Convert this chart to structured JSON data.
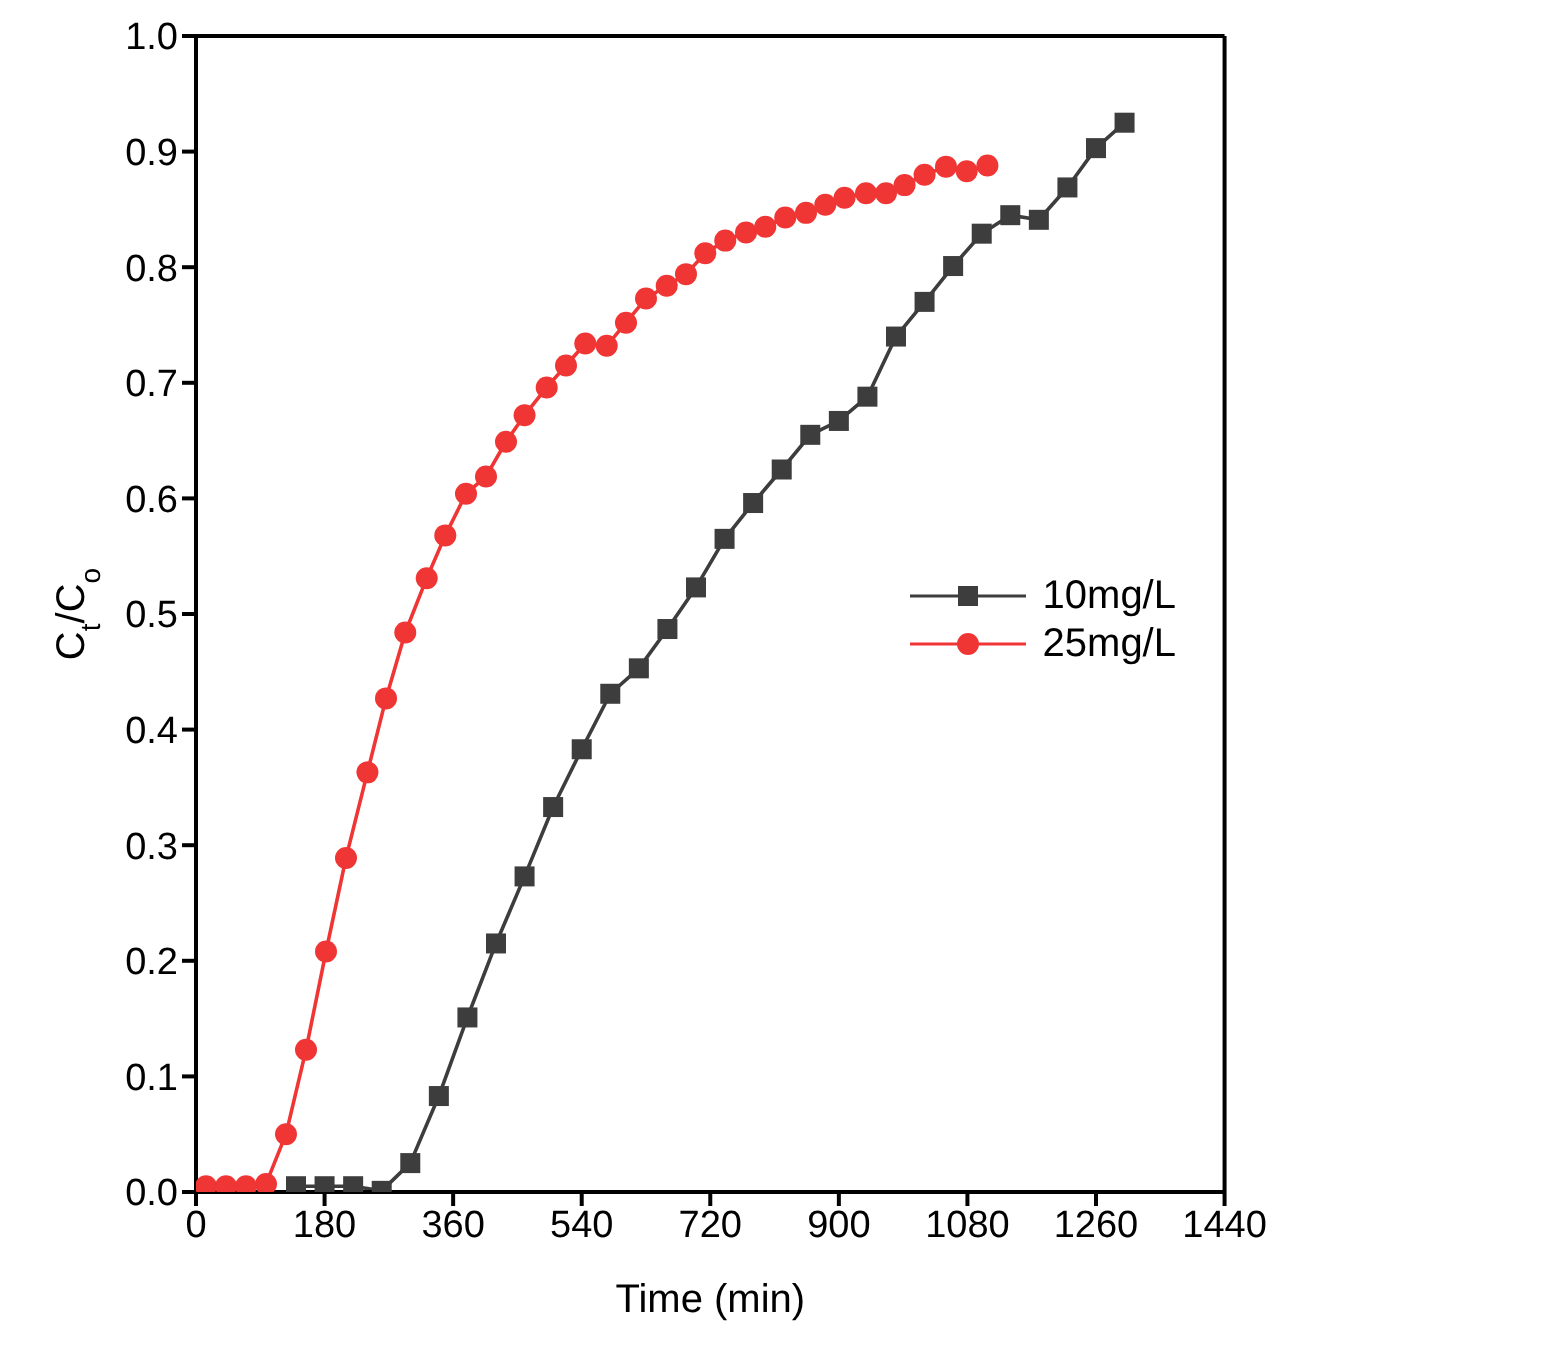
{
  "chart_data": {
    "type": "line",
    "xlabel": "Time (min)",
    "ylabel": "C$_{t}$/C$_{o}$",
    "xlim": [
      0,
      1440
    ],
    "xticks": [
      0,
      180,
      360,
      540,
      720,
      900,
      1080,
      1260,
      1440
    ],
    "ylim": [
      0,
      1
    ],
    "yticks": [
      {
        "value": 0,
        "label": "0.0"
      },
      {
        "value": 0.1,
        "label": "0.1"
      },
      {
        "value": 0.2,
        "label": "0.2"
      },
      {
        "value": 0.3,
        "label": "0.3"
      },
      {
        "value": 0.4,
        "label": "0.4"
      },
      {
        "value": 0.5,
        "label": "0.5"
      },
      {
        "value": 0.6,
        "label": "0.6"
      },
      {
        "value": 0.7,
        "label": "0.7"
      },
      {
        "value": 0.8,
        "label": "0.8"
      },
      {
        "value": 0.9,
        "label": "0.9"
      },
      {
        "value": 1,
        "label": "1.0"
      }
    ],
    "grid": false,
    "legend": "right",
    "series": [
      {
        "name": "10mg/L",
        "color": "#3d3d3d",
        "marker": "square",
        "x": [
          140,
          180,
          220,
          260,
          300,
          340,
          380,
          420,
          460,
          500,
          540,
          580,
          620,
          660,
          700,
          740,
          780,
          820,
          860,
          900,
          940,
          980,
          1020,
          1060,
          1100,
          1140,
          1180,
          1220,
          1260,
          1300
        ],
        "values": [
          0.005,
          0.005,
          0.005,
          0.001,
          0.025,
          0.083,
          0.151,
          0.215,
          0.273,
          0.333,
          0.383,
          0.431,
          0.453,
          0.487,
          0.523,
          0.565,
          0.596,
          0.625,
          0.655,
          0.667,
          0.688,
          0.74,
          0.77,
          0.801,
          0.829,
          0.845,
          0.841,
          0.869,
          0.903,
          0.925
        ]
      },
      {
        "name": "25mg/L",
        "color": "#f03535",
        "marker": "circle",
        "x": [
          14,
          42,
          70,
          98,
          126,
          154,
          182,
          210,
          240,
          266,
          293,
          323,
          349,
          378,
          406,
          434,
          460,
          491,
          518,
          545,
          575,
          602,
          630,
          659,
          686,
          713,
          741,
          770,
          797,
          825,
          854,
          881,
          908,
          938,
          966,
          992,
          1020,
          1050,
          1079,
          1108
        ],
        "values": [
          0.005,
          0.005,
          0.005,
          0.007,
          0.05,
          0.123,
          0.208,
          0.289,
          0.363,
          0.427,
          0.484,
          0.531,
          0.568,
          0.604,
          0.619,
          0.649,
          0.672,
          0.696,
          0.715,
          0.734,
          0.732,
          0.752,
          0.773,
          0.784,
          0.794,
          0.812,
          0.823,
          0.83,
          0.835,
          0.843,
          0.847,
          0.854,
          0.86,
          0.864,
          0.864,
          0.871,
          0.88,
          0.887,
          0.883,
          0.888
        ]
      }
    ]
  }
}
